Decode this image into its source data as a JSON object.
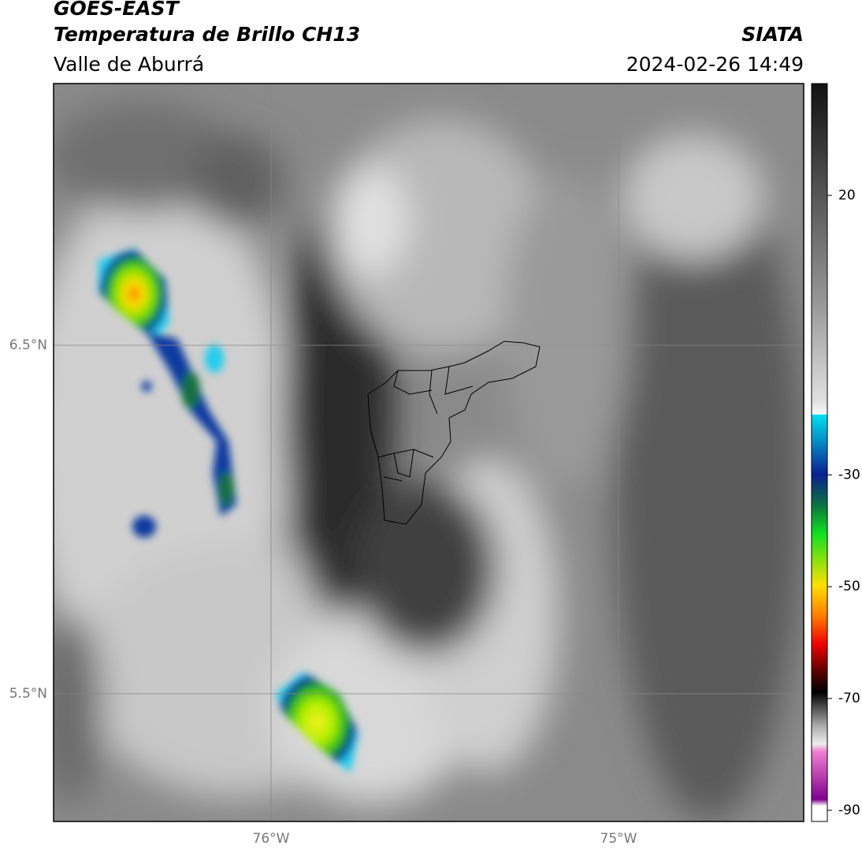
{
  "header": {
    "title": "GOES-EAST",
    "subtitle": "Temperatura de Brillo CH13",
    "region": "Valle de Aburrá",
    "source": "SIATA",
    "datetime": "2024-02-26 14:49"
  },
  "map": {
    "lat_labels": [
      "6.5°N",
      "5.5°N"
    ],
    "lon_labels": [
      "76°W",
      "75°W"
    ]
  },
  "colorbar": {
    "lim": [
      -92,
      40
    ],
    "ticks": [
      20,
      -30,
      -50,
      -70,
      -90
    ]
  }
}
